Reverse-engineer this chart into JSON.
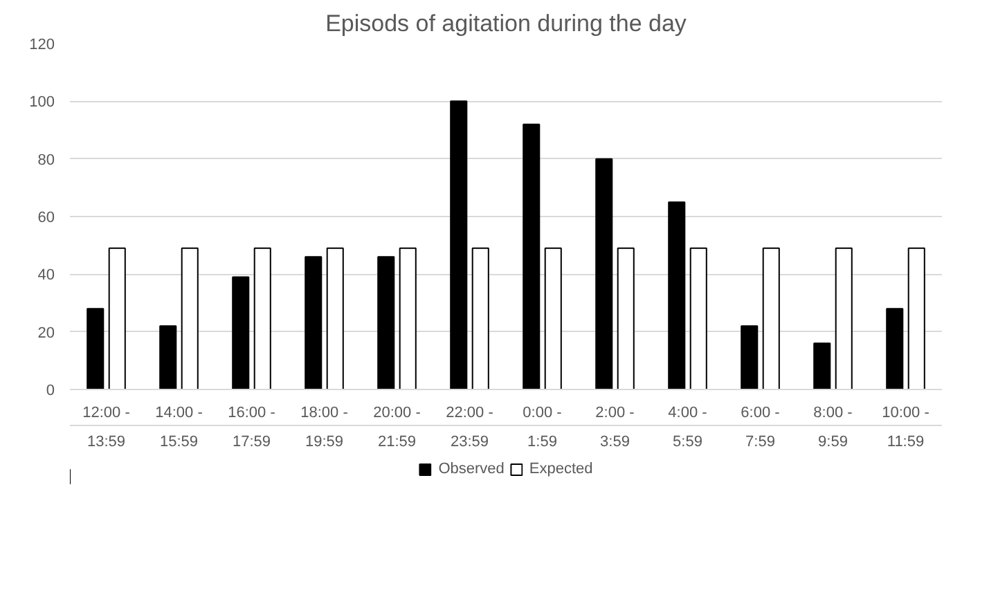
{
  "chart_data": {
    "type": "bar",
    "title": "Episods of agitation during the day",
    "categories": [
      "12:00 - 13:59",
      "14:00 - 15:59",
      "16:00 - 17:59",
      "18:00 - 19:59",
      "20:00 - 21:59",
      "22:00 - 23:59",
      "0:00 - 1:59",
      "2:00 - 3:59",
      "4:00 - 5:59",
      "6:00 - 7:59",
      "8:00 - 9:59",
      "10:00 - 11:59"
    ],
    "series": [
      {
        "name": "Observed",
        "color": "#000000",
        "values": [
          28,
          22,
          39,
          46,
          46,
          100,
          92,
          80,
          65,
          22,
          16,
          28
        ]
      },
      {
        "name": "Expected",
        "color": "#ffffff",
        "values": [
          49,
          49,
          49,
          49,
          49,
          49,
          49,
          49,
          49,
          49,
          49,
          49
        ]
      }
    ],
    "ylim": [
      0,
      120
    ],
    "yticks": [
      0,
      20,
      40,
      60,
      80,
      100,
      120
    ],
    "grid": "y",
    "legend": "bottom"
  }
}
